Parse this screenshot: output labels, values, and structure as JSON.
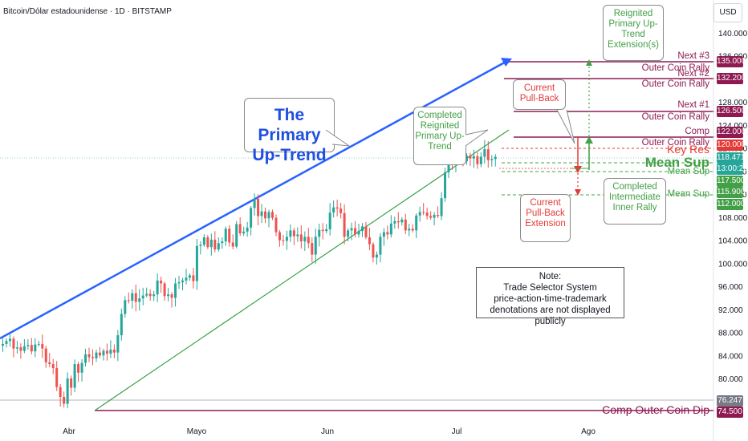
{
  "header": {
    "symbol": "Bitcoin/Dólar estadounidense · 1D · BITSTAMP",
    "currency_button": "USD"
  },
  "colors": {
    "bull": "#26a69a",
    "bear": "#ef5350",
    "primary_trend": "#2962ff",
    "channel": "#3aa346",
    "maroon": "#8e1a51",
    "green_label": "#43a047",
    "red_label": "#e53935"
  },
  "annotations": {
    "primary_trend": "The Primary Up-Trend",
    "completed_reignited": "Completed Reignited Primary Up-Trend",
    "reignited_extension": "Reignited Primary Up-Trend Extension(s)",
    "current_pullback": "Current Pull-Back",
    "current_pullback_ext": "Current Pull-Back Extension",
    "completed_inner_rally": "Completed Intermediate Inner Rally",
    "note": [
      "Note:",
      "Trade Selector System",
      "price-action-time-trademark",
      "denotations are not displayed publicly"
    ]
  },
  "levels": {
    "next3": "Next #3",
    "next3_sub": "Outer Coin Rally",
    "next2": "Next #2",
    "next2_sub": "Outer Coin Rally",
    "next1": "Next #1",
    "next1_sub": "Outer Coin Rally",
    "comp": "Comp",
    "comp_sub": "Outer Coin Rally",
    "key_res": "Key Res",
    "mean_sup_big": "Mean Sup",
    "mean_sup_1": "Mean Sup",
    "mean_sup_2": "Mean Sup",
    "comp_dip": "Comp Outer Coin Dip"
  },
  "price_tags": {
    "t135": "135.000",
    "t132": "132.200",
    "t126": "126.500",
    "t122": "122.000",
    "t120": "120.000",
    "t118": "118.471",
    "t_timer": "13:00:28",
    "t117": "117.500",
    "t115": "115.900",
    "t112": "112.000",
    "t76": "76.247",
    "t74": "74.500"
  },
  "chart_data": {
    "type": "candlestick",
    "title": "Bitcoin/Dólar estadounidense · 1D · BITSTAMP",
    "x_ticks": [
      "Abr",
      "Mayo",
      "Jun",
      "Jul",
      "Ago"
    ],
    "y_ticks": [
      80000,
      84000,
      88000,
      92000,
      96000,
      100000,
      104000,
      108000,
      112000,
      116000,
      120000,
      124000,
      128000,
      136000,
      140000
    ],
    "y_tick_labels": [
      "80.000",
      "84.000",
      "88.000",
      "92.000",
      "96.000",
      "100.000",
      "104.000",
      "108.000",
      "112.000",
      "116.000",
      "120.000",
      "124.000",
      "128.000",
      "136.000",
      "140.000"
    ],
    "ylim": [
      74000,
      144000
    ],
    "x_range": [
      "2025-03-22",
      "2025-08-18"
    ],
    "levels": [
      135000,
      132200,
      126500,
      122000,
      120000,
      117500,
      115900,
      112000,
      76247,
      74500
    ],
    "last_price": 118471,
    "closes": [
      86000,
      86500,
      86900,
      85200,
      85400,
      84800,
      85600,
      85800,
      84700,
      85900,
      86000,
      85200,
      82800,
      82500,
      81800,
      78500,
      76800,
      75600,
      80000,
      78400,
      82500,
      81000,
      82700,
      84200,
      83700,
      83500,
      84500,
      84000,
      84800,
      84300,
      85000,
      84500,
      87500,
      91200,
      93600,
      93500,
      94800,
      93300,
      93900,
      94400,
      94700,
      94300,
      94600,
      97000,
      96500,
      94300,
      94600,
      94000,
      96500,
      96700,
      97000,
      97500,
      97900,
      96900,
      103000,
      103200,
      104500,
      102800,
      104100,
      102400,
      103500,
      103800,
      106000,
      103600,
      102900,
      106800,
      105200,
      105500,
      106200,
      109600,
      111200,
      108200,
      109000,
      107800,
      108900,
      107900,
      105400,
      104000,
      103900,
      104600,
      105700,
      104700,
      105000,
      103800,
      104600,
      103500,
      101500,
      104600,
      105800,
      105600,
      105900,
      108800,
      109700,
      109500,
      108700,
      104600,
      105700,
      106100,
      105000,
      105600,
      106400,
      104500,
      103300,
      101000,
      101500,
      104600,
      105400,
      105000,
      106900,
      107300,
      107100,
      107600,
      105700,
      106000,
      105700,
      108300,
      108900,
      108800,
      108200,
      107900,
      108400,
      108200,
      111300,
      115800,
      117500,
      117400,
      119000,
      119900,
      117700,
      118700,
      118200,
      118600,
      117200,
      118500,
      119800,
      117900,
      118100,
      118471
    ]
  }
}
